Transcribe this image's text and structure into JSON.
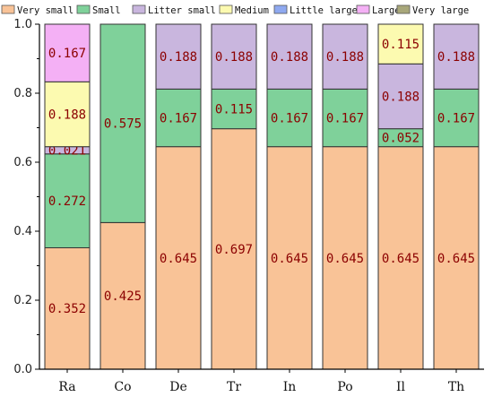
{
  "chart_data": {
    "type": "bar",
    "stacked": true,
    "categories": [
      "Ra",
      "Co",
      "De",
      "Tr",
      "In",
      "Po",
      "Il",
      "Th"
    ],
    "series": [
      {
        "name": "Very small",
        "color": "#f9c397",
        "values": [
          0.352,
          0.425,
          0.645,
          0.697,
          0.645,
          0.645,
          0.645,
          0.645
        ],
        "labels": [
          "0.352",
          "0.425",
          "0.645",
          "0.697",
          "0.645",
          "0.645",
          "0.645",
          "0.645"
        ]
      },
      {
        "name": "Small",
        "color": "#7fd19a",
        "values": [
          0.272,
          0.575,
          0.167,
          0.115,
          0.167,
          0.167,
          0.052,
          0.167
        ],
        "labels": [
          "0.272",
          "0.575",
          "0.167",
          "0.115",
          "0.167",
          "0.167",
          "0.052",
          "0.167"
        ]
      },
      {
        "name": "Litter small",
        "color": "#c9b6de",
        "values": [
          0.021,
          0,
          0.188,
          0.188,
          0.188,
          0.188,
          0.188,
          0.188
        ],
        "labels": [
          "0.021",
          "",
          "0.188",
          "0.188",
          "0.188",
          "0.188",
          "0.188",
          "0.188"
        ]
      },
      {
        "name": "Medium",
        "color": "#fcfab0",
        "values": [
          0.188,
          0,
          0,
          0,
          0,
          0,
          0.115,
          0
        ],
        "labels": [
          "0.188",
          "",
          "",
          "",
          "",
          "",
          "0.115",
          ""
        ]
      },
      {
        "name": "Little large",
        "color": "#8fa9f0",
        "values": [
          0,
          0,
          0,
          0,
          0,
          0,
          0,
          0
        ],
        "labels": [
          "",
          "",
          "",
          "",
          "",
          "",
          "",
          ""
        ]
      },
      {
        "name": "Large",
        "color": "#f4b0f5",
        "values": [
          0.167,
          0,
          0,
          0,
          0,
          0,
          0,
          0
        ],
        "labels": [
          "0.167",
          "",
          "",
          "",
          "",
          "",
          "",
          ""
        ]
      },
      {
        "name": "Very large",
        "color": "#a8a77a",
        "values": [
          0,
          0,
          0,
          0,
          0,
          0,
          0,
          0
        ],
        "labels": [
          "",
          "",
          "",
          "",
          "",
          "",
          "",
          ""
        ]
      }
    ],
    "yticks": [
      "0.0",
      "0.2",
      "0.4",
      "0.6",
      "0.8",
      "1.0"
    ],
    "ylim": [
      0,
      1
    ],
    "title": "",
    "xlabel": "",
    "ylabel": "",
    "legend_position": "top",
    "grid": false
  }
}
